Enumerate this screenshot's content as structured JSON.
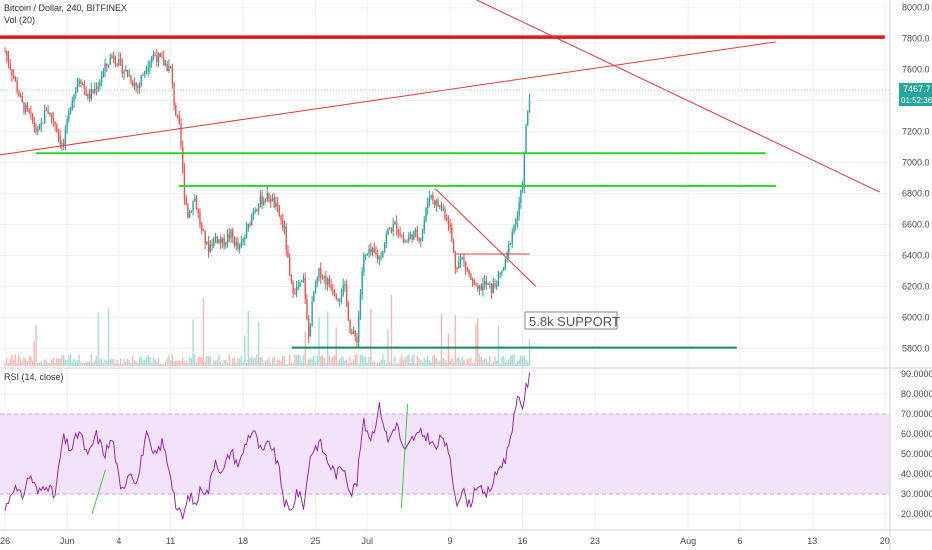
{
  "chart_data": [
    {
      "type": "candlestick",
      "title": "Bitcoin / Dollar, 240, BITFINEX",
      "volume_label": "Vol (20)",
      "ylim": [
        5680,
        8050
      ],
      "y_ticks": [
        {
          "value": 8000,
          "label": "8000.0"
        },
        {
          "value": 7800,
          "label": "7800.0"
        },
        {
          "value": 7600,
          "label": "7600.0"
        },
        {
          "value": 7400,
          "label": "7400.0"
        },
        {
          "value": 7200,
          "label": "7200.0"
        },
        {
          "value": 7000,
          "label": "7000.0"
        },
        {
          "value": 6800,
          "label": "6800.0"
        },
        {
          "value": 6600,
          "label": "6600.0"
        },
        {
          "value": 6400,
          "label": "6400.0"
        },
        {
          "value": 6200,
          "label": "6200.0"
        },
        {
          "value": 6000,
          "label": "6000.0"
        },
        {
          "value": 5800,
          "label": "5800.0"
        }
      ],
      "price_label": "7467.7",
      "countdown_label": "01:52:36",
      "annotation": "5.8k SUPPORT",
      "grid": true,
      "price_path": [
        {
          "d": 0,
          "v": 7720
        },
        {
          "d": 0.8,
          "v": 7560
        },
        {
          "d": 1.6,
          "v": 7380
        },
        {
          "d": 2.4,
          "v": 7300
        },
        {
          "d": 3.2,
          "v": 7180
        },
        {
          "d": 4.0,
          "v": 7350
        },
        {
          "d": 4.8,
          "v": 7260
        },
        {
          "d": 5.6,
          "v": 7090
        },
        {
          "d": 6.4,
          "v": 7400
        },
        {
          "d": 7.2,
          "v": 7560
        },
        {
          "d": 8.0,
          "v": 7420
        },
        {
          "d": 8.8,
          "v": 7480
        },
        {
          "d": 9.6,
          "v": 7600
        },
        {
          "d": 10.4,
          "v": 7700
        },
        {
          "d": 11.2,
          "v": 7620
        },
        {
          "d": 12.0,
          "v": 7560
        },
        {
          "d": 12.8,
          "v": 7480
        },
        {
          "d": 13.6,
          "v": 7620
        },
        {
          "d": 14.4,
          "v": 7700
        },
        {
          "d": 15.2,
          "v": 7650
        },
        {
          "d": 16.0,
          "v": 7600
        },
        {
          "d": 16.4,
          "v": 7350
        },
        {
          "d": 16.9,
          "v": 7200
        },
        {
          "d": 17.3,
          "v": 6820
        },
        {
          "d": 17.7,
          "v": 6650
        },
        {
          "d": 18.3,
          "v": 6780
        },
        {
          "d": 19.0,
          "v": 6560
        },
        {
          "d": 19.6,
          "v": 6440
        },
        {
          "d": 20.3,
          "v": 6520
        },
        {
          "d": 21.0,
          "v": 6480
        },
        {
          "d": 21.8,
          "v": 6540
        },
        {
          "d": 22.6,
          "v": 6430
        },
        {
          "d": 23.4,
          "v": 6560
        },
        {
          "d": 24.0,
          "v": 6700
        },
        {
          "d": 24.8,
          "v": 6760
        },
        {
          "d": 25.6,
          "v": 6780
        },
        {
          "d": 26.4,
          "v": 6680
        },
        {
          "d": 27.0,
          "v": 6560
        },
        {
          "d": 27.6,
          "v": 6200
        },
        {
          "d": 28.2,
          "v": 6180
        },
        {
          "d": 28.9,
          "v": 6240
        },
        {
          "d": 29.3,
          "v": 5850
        },
        {
          "d": 29.8,
          "v": 6150
        },
        {
          "d": 30.4,
          "v": 6300
        },
        {
          "d": 31.0,
          "v": 6240
        },
        {
          "d": 31.6,
          "v": 6200
        },
        {
          "d": 32.2,
          "v": 6130
        },
        {
          "d": 32.8,
          "v": 6200
        },
        {
          "d": 33.4,
          "v": 5900
        },
        {
          "d": 34.0,
          "v": 5860
        },
        {
          "d": 34.6,
          "v": 6380
        },
        {
          "d": 35.4,
          "v": 6420
        },
        {
          "d": 36.2,
          "v": 6380
        },
        {
          "d": 37.0,
          "v": 6560
        },
        {
          "d": 37.8,
          "v": 6600
        },
        {
          "d": 38.6,
          "v": 6480
        },
        {
          "d": 39.4,
          "v": 6540
        },
        {
          "d": 40.2,
          "v": 6520
        },
        {
          "d": 41.0,
          "v": 6800
        },
        {
          "d": 41.6,
          "v": 6740
        },
        {
          "d": 42.3,
          "v": 6700
        },
        {
          "d": 42.9,
          "v": 6620
        },
        {
          "d": 43.5,
          "v": 6340
        },
        {
          "d": 44.2,
          "v": 6380
        },
        {
          "d": 44.9,
          "v": 6260
        },
        {
          "d": 45.6,
          "v": 6160
        },
        {
          "d": 46.3,
          "v": 6220
        },
        {
          "d": 47.0,
          "v": 6180
        },
        {
          "d": 47.8,
          "v": 6260
        },
        {
          "d": 48.4,
          "v": 6360
        },
        {
          "d": 49.0,
          "v": 6560
        },
        {
          "d": 49.6,
          "v": 6680
        },
        {
          "d": 50.0,
          "v": 6860
        },
        {
          "d": 50.4,
          "v": 7280
        },
        {
          "d": 50.8,
          "v": 7467
        }
      ],
      "drawings": [
        {
          "name": "resistance-line-7800",
          "color": "#e0191b",
          "width": 3.5,
          "points": [
            [
              -0.5,
              7810
            ],
            [
              85,
              7810
            ]
          ]
        },
        {
          "name": "rising-trendline",
          "color": "#e8383a",
          "width": 1,
          "points": [
            [
              -0.5,
              7050
            ],
            [
              74.5,
              7780
            ]
          ]
        },
        {
          "name": "descending-trendline",
          "color": "#e8383a",
          "width": 1,
          "points": [
            [
              44,
              8100
            ],
            [
              84.5,
              6810
            ]
          ]
        },
        {
          "name": "support-line-7050",
          "color": "#2fd12f",
          "width": 2,
          "points": [
            [
              3,
              7060
            ],
            [
              73.5,
              7060
            ]
          ]
        },
        {
          "name": "support-line-6850",
          "color": "#2fd12f",
          "width": 2,
          "points": [
            [
              16.8,
              6850
            ],
            [
              74.5,
              6850
            ]
          ]
        },
        {
          "name": "support-line-5800",
          "color": "#1b8a5a",
          "width": 2,
          "points": [
            [
              27.7,
              5805
            ],
            [
              70.7,
              5805
            ]
          ]
        },
        {
          "name": "wedge-trendline",
          "color": "#e8383a",
          "width": 1,
          "points": [
            [
              41.6,
              6830
            ],
            [
              51.3,
              6200
            ]
          ]
        },
        {
          "name": "breakout-level",
          "color": "#e8383a",
          "width": 1,
          "points": [
            [
              43.6,
              6410
            ],
            [
              50.7,
              6410
            ]
          ]
        }
      ]
    },
    {
      "type": "line",
      "title": "RSI (14, close)",
      "ylim": [
        12,
        93
      ],
      "y_ticks": [
        {
          "value": 90,
          "label": "90.0000"
        },
        {
          "value": 80,
          "label": "80.0000"
        },
        {
          "value": 70,
          "label": "70.0000"
        },
        {
          "value": 60,
          "label": "60.0000"
        },
        {
          "value": 50,
          "label": "50.0000"
        },
        {
          "value": 40,
          "label": "40.0000"
        },
        {
          "value": 30,
          "label": "30.0000"
        },
        {
          "value": 20,
          "label": "20.0000"
        }
      ],
      "band": [
        30,
        70
      ],
      "series": [
        {
          "values_path": [
            {
              "d": 0,
              "v": 22
            },
            {
              "d": 0.8,
              "v": 34
            },
            {
              "d": 1.6,
              "v": 28
            },
            {
              "d": 2.4,
              "v": 40
            },
            {
              "d": 3.2,
              "v": 30
            },
            {
              "d": 4.0,
              "v": 36
            },
            {
              "d": 4.8,
              "v": 28
            },
            {
              "d": 5.6,
              "v": 58
            },
            {
              "d": 6.4,
              "v": 52
            },
            {
              "d": 7.2,
              "v": 62
            },
            {
              "d": 8.0,
              "v": 48
            },
            {
              "d": 8.8,
              "v": 60
            },
            {
              "d": 9.6,
              "v": 50
            },
            {
              "d": 10.4,
              "v": 58
            },
            {
              "d": 11.2,
              "v": 30
            },
            {
              "d": 12.0,
              "v": 42
            },
            {
              "d": 12.8,
              "v": 36
            },
            {
              "d": 13.6,
              "v": 60
            },
            {
              "d": 14.4,
              "v": 48
            },
            {
              "d": 15.2,
              "v": 56
            },
            {
              "d": 16.0,
              "v": 40
            },
            {
              "d": 16.6,
              "v": 22
            },
            {
              "d": 17.2,
              "v": 18
            },
            {
              "d": 17.8,
              "v": 30
            },
            {
              "d": 18.4,
              "v": 24
            },
            {
              "d": 19.0,
              "v": 34
            },
            {
              "d": 19.6,
              "v": 30
            },
            {
              "d": 20.3,
              "v": 48
            },
            {
              "d": 21.0,
              "v": 40
            },
            {
              "d": 21.8,
              "v": 52
            },
            {
              "d": 22.6,
              "v": 44
            },
            {
              "d": 23.4,
              "v": 58
            },
            {
              "d": 24.0,
              "v": 62
            },
            {
              "d": 24.8,
              "v": 50
            },
            {
              "d": 25.6,
              "v": 56
            },
            {
              "d": 26.4,
              "v": 44
            },
            {
              "d": 27.0,
              "v": 26
            },
            {
              "d": 27.6,
              "v": 20
            },
            {
              "d": 28.2,
              "v": 32
            },
            {
              "d": 28.9,
              "v": 24
            },
            {
              "d": 29.5,
              "v": 50
            },
            {
              "d": 30.4,
              "v": 56
            },
            {
              "d": 31.2,
              "v": 46
            },
            {
              "d": 32.0,
              "v": 40
            },
            {
              "d": 32.8,
              "v": 44
            },
            {
              "d": 33.4,
              "v": 30
            },
            {
              "d": 34.0,
              "v": 36
            },
            {
              "d": 34.6,
              "v": 66
            },
            {
              "d": 35.4,
              "v": 58
            },
            {
              "d": 36.2,
              "v": 74
            },
            {
              "d": 37.0,
              "v": 56
            },
            {
              "d": 37.8,
              "v": 66
            },
            {
              "d": 38.6,
              "v": 50
            },
            {
              "d": 39.4,
              "v": 58
            },
            {
              "d": 40.2,
              "v": 60
            },
            {
              "d": 41.0,
              "v": 58
            },
            {
              "d": 41.6,
              "v": 52
            },
            {
              "d": 42.3,
              "v": 60
            },
            {
              "d": 43.0,
              "v": 46
            },
            {
              "d": 43.6,
              "v": 26
            },
            {
              "d": 44.2,
              "v": 32
            },
            {
              "d": 44.9,
              "v": 24
            },
            {
              "d": 45.6,
              "v": 36
            },
            {
              "d": 46.3,
              "v": 28
            },
            {
              "d": 47.0,
              "v": 34
            },
            {
              "d": 47.8,
              "v": 44
            },
            {
              "d": 48.4,
              "v": 48
            },
            {
              "d": 49.0,
              "v": 64
            },
            {
              "d": 49.6,
              "v": 78
            },
            {
              "d": 50.0,
              "v": 74
            },
            {
              "d": 50.4,
              "v": 84
            },
            {
              "d": 50.8,
              "v": 90
            }
          ]
        }
      ],
      "drawings": [
        {
          "name": "rsi-divergence-line-1",
          "color": "#3ccf3c",
          "width": 1,
          "points": [
            [
              8.4,
              20
            ],
            [
              9.7,
              42
            ]
          ]
        },
        {
          "name": "rsi-divergence-line-2",
          "color": "#3ccf3c",
          "width": 1,
          "points": [
            [
              38.3,
              23
            ],
            [
              38.9,
              75
            ]
          ]
        }
      ]
    }
  ],
  "x_ticks": [
    {
      "d": 0,
      "label": "26"
    },
    {
      "d": 6,
      "label": "Jun"
    },
    {
      "d": 11,
      "label": "4"
    },
    {
      "d": 16,
      "label": "11"
    },
    {
      "d": 23,
      "label": "18"
    },
    {
      "d": 30,
      "label": "25"
    },
    {
      "d": 35,
      "label": "Jul"
    },
    {
      "d": 43,
      "label": "9"
    },
    {
      "d": 50,
      "label": "16"
    },
    {
      "d": 57,
      "label": "23"
    },
    {
      "d": 66,
      "label": "Aug"
    },
    {
      "d": 71,
      "label": "6"
    },
    {
      "d": 78,
      "label": "13"
    },
    {
      "d": 85,
      "label": "20"
    }
  ],
  "colors": {
    "up": "#26a69a",
    "down": "#ef5350",
    "rsi_line": "#9c27b0",
    "rsi_band": "#f2e3fb",
    "grid": "#eef0f3"
  }
}
